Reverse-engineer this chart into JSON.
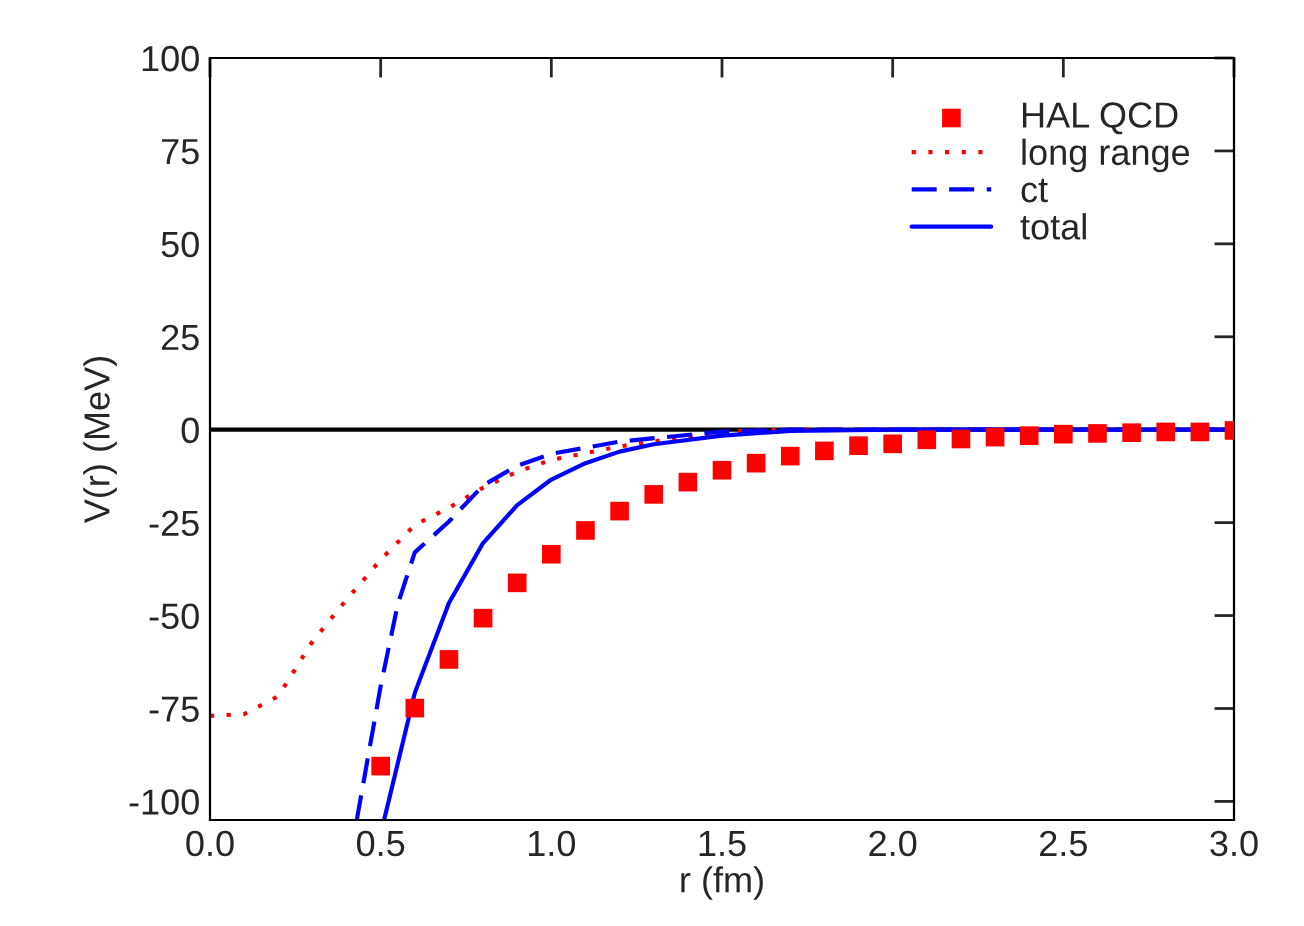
{
  "chart_data": {
    "type": "scatter",
    "xlabel": "r (fm)",
    "ylabel": "V(r) (MeV)",
    "xlim": [
      0,
      3
    ],
    "xticks": [
      {
        "value": 0,
        "label": "0.0"
      },
      {
        "value": 0.5,
        "label": "0.5"
      },
      {
        "value": 1,
        "label": "1.0"
      },
      {
        "value": 1.5,
        "label": "1.5"
      },
      {
        "value": 2,
        "label": "2.0"
      },
      {
        "value": 2.5,
        "label": "2.5"
      },
      {
        "value": 3,
        "label": "3.0"
      }
    ],
    "ylim": [
      -105,
      100
    ],
    "yticks": [
      -100,
      -75,
      -50,
      -25,
      0,
      25,
      50,
      75,
      100
    ],
    "legend": "top right",
    "grid": false,
    "ref_lines": [
      {
        "axis": "y",
        "value": 0,
        "color": "#000000",
        "line_style": "solid"
      }
    ],
    "series": [
      {
        "name": "HAL QCD",
        "marker": "square",
        "color": "#ff0000",
        "x": [
          0.5,
          0.6,
          0.7,
          0.8,
          0.9,
          1.0,
          1.1,
          1.2,
          1.3,
          1.4,
          1.5,
          1.6,
          1.7,
          1.8,
          1.9,
          2.0,
          2.1,
          2.2,
          2.3,
          2.4,
          2.5,
          2.6,
          2.7,
          2.8,
          2.9,
          3.0
        ],
        "values": [
          -90.5,
          -74.9,
          -61.8,
          -50.7,
          -41.2,
          -33.5,
          -27.1,
          -21.9,
          -17.4,
          -14.1,
          -10.9,
          -9.0,
          -7.1,
          -5.7,
          -4.3,
          -3.8,
          -2.7,
          -2.5,
          -2.0,
          -1.6,
          -1.2,
          -1.0,
          -0.8,
          -0.6,
          -0.6,
          -0.2
        ]
      },
      {
        "name": "long range",
        "type": "line",
        "line_style": "dotted",
        "color": "#ff0000",
        "x": [
          0.0,
          0.1,
          0.2,
          0.3,
          0.4,
          0.5,
          0.6,
          0.7,
          0.8,
          0.9,
          1.0,
          1.2,
          1.5,
          1.7,
          3.0
        ],
        "values": [
          -77,
          -76.5,
          -71.7,
          -57,
          -45.7,
          -35,
          -25.6,
          -21,
          -15.6,
          -11.3,
          -8.1,
          -4.5,
          -0.5,
          0,
          0
        ]
      },
      {
        "name": "ct",
        "type": "line",
        "line_style": "dashed",
        "color": "#0000ff",
        "x": [
          0.43,
          0.5,
          0.55,
          0.6,
          0.7,
          0.8,
          0.9,
          1.0,
          1.2,
          1.5,
          1.7,
          3.0
        ],
        "values": [
          -105,
          -69,
          -47,
          -33,
          -24.7,
          -15,
          -9.7,
          -6.5,
          -3.2,
          -0.5,
          0,
          0
        ]
      },
      {
        "name": "total",
        "type": "line",
        "line_style": "solid",
        "color": "#0000ff",
        "x": [
          0.51,
          0.6,
          0.7,
          0.8,
          0.9,
          1.0,
          1.1,
          1.2,
          1.3,
          1.5,
          1.7,
          2.0,
          3.0
        ],
        "values": [
          -105,
          -70.8,
          -46.6,
          -30.5,
          -20.3,
          -13.4,
          -9,
          -5.9,
          -3.9,
          -1.6,
          -0.3,
          0,
          0
        ]
      }
    ]
  }
}
